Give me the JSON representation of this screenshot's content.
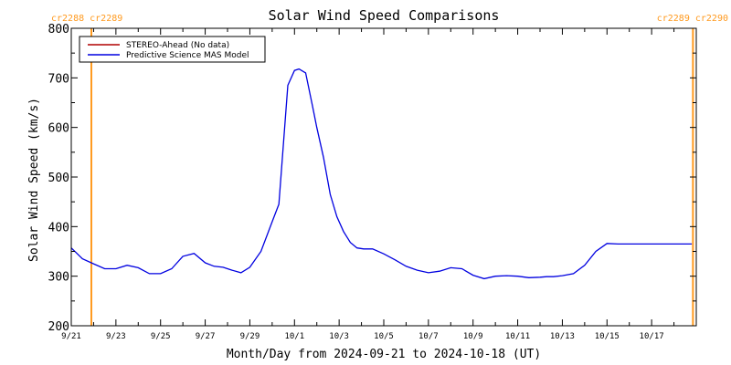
{
  "colors": {
    "stereo": "#b00000",
    "model": "#0000e0",
    "carrington": "#ff9a1f",
    "axis": "#000000"
  },
  "chart_data": {
    "type": "line",
    "title": "Solar Wind Speed Comparisons",
    "xlabel": "Month/Day from 2024-09-21 to 2024-10-18 (UT)",
    "ylabel": "Solar Wind Speed (km/s)",
    "x_unit": "days from 2024-09-21 00:00 UT",
    "xlim": [
      0,
      28
    ],
    "ylim": [
      200,
      800
    ],
    "y_ticks": [
      200,
      300,
      400,
      500,
      600,
      700,
      800
    ],
    "x_ticks": [
      {
        "label": "9/21",
        "x": 0
      },
      {
        "label": "9/23",
        "x": 2
      },
      {
        "label": "9/25",
        "x": 4
      },
      {
        "label": "9/27",
        "x": 6
      },
      {
        "label": "9/29",
        "x": 8
      },
      {
        "label": "10/1",
        "x": 10
      },
      {
        "label": "10/3",
        "x": 12
      },
      {
        "label": "10/5",
        "x": 14
      },
      {
        "label": "10/7",
        "x": 16
      },
      {
        "label": "10/9",
        "x": 18
      },
      {
        "label": "10/11",
        "x": 20
      },
      {
        "label": "10/13",
        "x": 22
      },
      {
        "label": "10/15",
        "x": 24
      },
      {
        "label": "10/17",
        "x": 26
      }
    ],
    "grid": false,
    "legend_position": "top-left",
    "carrington_markers": [
      {
        "x": 0.9,
        "labels": [
          "cr2288",
          "cr2289"
        ],
        "label_side": "left"
      },
      {
        "x": 27.85,
        "labels": [
          "cr2289",
          "cr2290"
        ],
        "label_side": "right"
      }
    ],
    "series": [
      {
        "name": "STEREO-Ahead (No data)",
        "color": "#b00000",
        "x": [],
        "values": []
      },
      {
        "name": "Predictive Science MAS Model",
        "color": "#0000e0",
        "x": [
          0.0,
          0.5,
          1.0,
          1.5,
          2.0,
          2.5,
          3.0,
          3.5,
          4.0,
          4.5,
          5.0,
          5.5,
          6.0,
          6.4,
          6.8,
          7.2,
          7.6,
          8.0,
          8.5,
          9.0,
          9.3,
          9.7,
          10.0,
          10.2,
          10.5,
          10.8,
          11.0,
          11.3,
          11.6,
          11.9,
          12.2,
          12.5,
          12.8,
          13.1,
          13.5,
          14.0,
          14.5,
          15.0,
          15.5,
          16.0,
          16.5,
          17.0,
          17.5,
          18.0,
          18.5,
          19.0,
          19.5,
          20.0,
          20.5,
          21.0,
          21.3,
          21.6,
          22.0,
          22.5,
          23.0,
          23.5,
          24.0,
          24.5,
          25.0,
          25.5,
          26.0,
          26.5,
          26.9,
          27.2,
          27.5,
          27.8
        ],
        "values": [
          357,
          335,
          325,
          315,
          315,
          322,
          317,
          305,
          305,
          315,
          340,
          346,
          327,
          320,
          318,
          312,
          307,
          318,
          350,
          410,
          445,
          685,
          715,
          718,
          710,
          645,
          600,
          540,
          465,
          420,
          390,
          368,
          357,
          355,
          355,
          345,
          333,
          320,
          312,
          307,
          310,
          317,
          315,
          302,
          295,
          300,
          301,
          300,
          297,
          298,
          299,
          299,
          301,
          305,
          322,
          350,
          366,
          365,
          365,
          365,
          365,
          365,
          365,
          365,
          365,
          365
        ]
      }
    ]
  }
}
